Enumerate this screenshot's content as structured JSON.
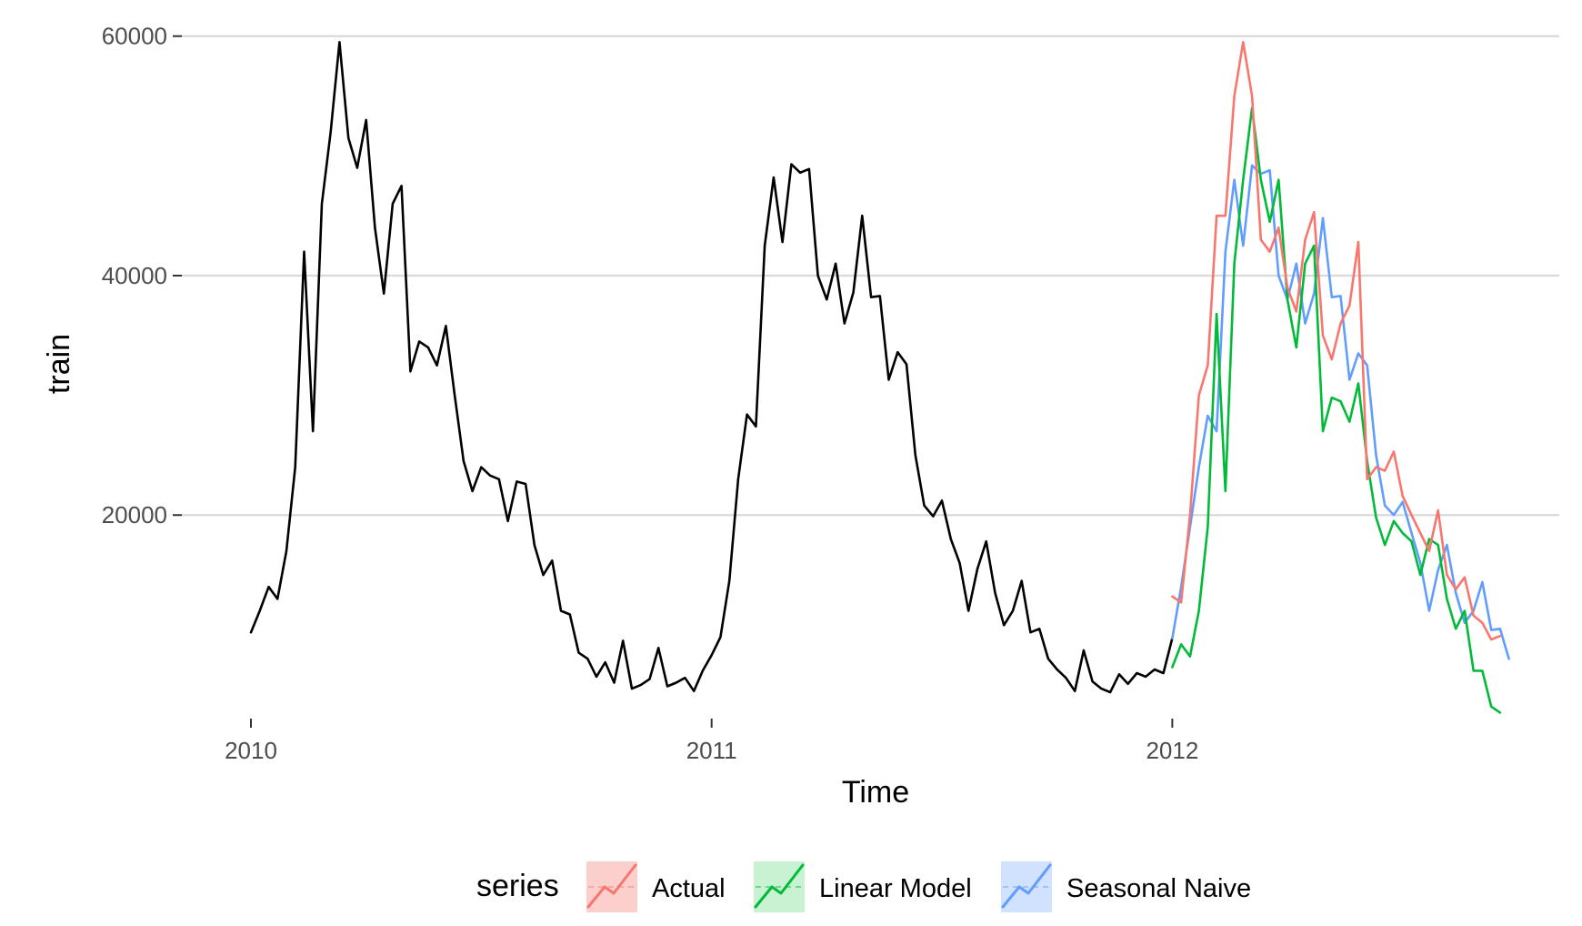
{
  "chart_data": {
    "type": "line",
    "title": "",
    "xlabel": "Time",
    "ylabel": "train",
    "xlim": [
      2009.85,
      2012.84
    ],
    "ylim": [
      3000,
      61500
    ],
    "x_ticks": [
      {
        "value": 2010,
        "label": "2010"
      },
      {
        "value": 2011,
        "label": "2011"
      },
      {
        "value": 2012,
        "label": "2012"
      }
    ],
    "y_ticks": [
      {
        "value": 20000,
        "label": "20000"
      },
      {
        "value": 40000,
        "label": "40000"
      },
      {
        "value": 60000,
        "label": "60000"
      }
    ],
    "grid": true,
    "legend": {
      "title": "series",
      "position": "bottom",
      "entries": [
        {
          "label": "Actual",
          "color": "#F8766D",
          "fill": "#FBD0CC"
        },
        {
          "label": "Linear Model",
          "color": "#00BA38",
          "fill": "#C8F2D2"
        },
        {
          "label": "Seasonal Naive",
          "color": "#619CFF",
          "fill": "#D1E2FF"
        }
      ]
    },
    "series": [
      {
        "id": "train",
        "color": "#000000",
        "x_start": 2010.0,
        "step": 0.01923,
        "values": [
          10200,
          12000,
          14000,
          13000,
          17000,
          24000,
          42000,
          27000,
          46000,
          52000,
          59500,
          51500,
          49000,
          53000,
          44000,
          38500,
          46000,
          47500,
          32000,
          34500,
          34000,
          32500,
          35800,
          30000,
          24500,
          22000,
          24000,
          23300,
          23000,
          19500,
          22800,
          22600,
          17500,
          15000,
          16200,
          12000,
          11700,
          8500,
          8000,
          6500,
          7700,
          6000,
          9500,
          5500,
          5800,
          6300,
          8900,
          5700,
          6000,
          6400,
          5300,
          7000,
          8300,
          9800,
          14500,
          23000,
          28400,
          27400,
          42500,
          48200,
          42800,
          49300,
          48600,
          48900,
          40000,
          38000,
          41000,
          36000,
          38600,
          45000,
          38200,
          38300,
          31300,
          33600,
          32600,
          25000,
          20800,
          19900,
          21200,
          18000,
          16000,
          12000,
          15500,
          17800,
          13500,
          10800,
          12000,
          14500,
          10200,
          10500,
          8000,
          7100,
          6400,
          5300,
          8700,
          6100,
          5500,
          5200,
          6700,
          5900,
          6800,
          6500,
          7100,
          6800,
          9700
        ]
      },
      {
        "id": "seasonal-naive",
        "name": "Seasonal Naive",
        "color": "#619CFF",
        "x_start": 2012.0,
        "step": 0.01923,
        "values": [
          9700,
          14000,
          19000,
          24000,
          28300,
          27000,
          42000,
          48000,
          42500,
          49200,
          48500,
          48800,
          40000,
          38000,
          41000,
          36000,
          38500,
          44800,
          38200,
          38300,
          31300,
          33500,
          32500,
          25000,
          20800,
          20000,
          21100,
          18500,
          16000,
          12000,
          15400,
          17500,
          13500,
          11000,
          12000,
          14400,
          10400,
          10500,
          8000
        ]
      },
      {
        "id": "linear-model",
        "name": "Linear Model",
        "color": "#00BA38",
        "x_start": 2012.0,
        "step": 0.01923,
        "values": [
          7300,
          9200,
          8200,
          12000,
          19000,
          36800,
          22000,
          41000,
          48000,
          54000,
          48000,
          44500,
          48000,
          38000,
          34000,
          41000,
          42500,
          27000,
          29800,
          29500,
          27800,
          31000,
          24500,
          19800,
          17500,
          19500,
          18500,
          17800,
          15000,
          18000,
          17500,
          13000,
          10500,
          12000,
          7000,
          7000,
          4000,
          3500
        ]
      },
      {
        "id": "actual",
        "name": "Actual",
        "color": "#F8766D",
        "x_start": 2012.0,
        "step": 0.01923,
        "values": [
          13200,
          12700,
          20000,
          30000,
          32500,
          45000,
          45000,
          55000,
          59500,
          55000,
          43000,
          42000,
          44000,
          39000,
          37000,
          43000,
          45300,
          35000,
          33000,
          36000,
          37500,
          42800,
          23000,
          24000,
          23700,
          25300,
          21600,
          20000,
          18500,
          17000,
          20400,
          15000,
          13800,
          14800,
          11600,
          11000,
          9600,
          9900
        ]
      }
    ]
  }
}
